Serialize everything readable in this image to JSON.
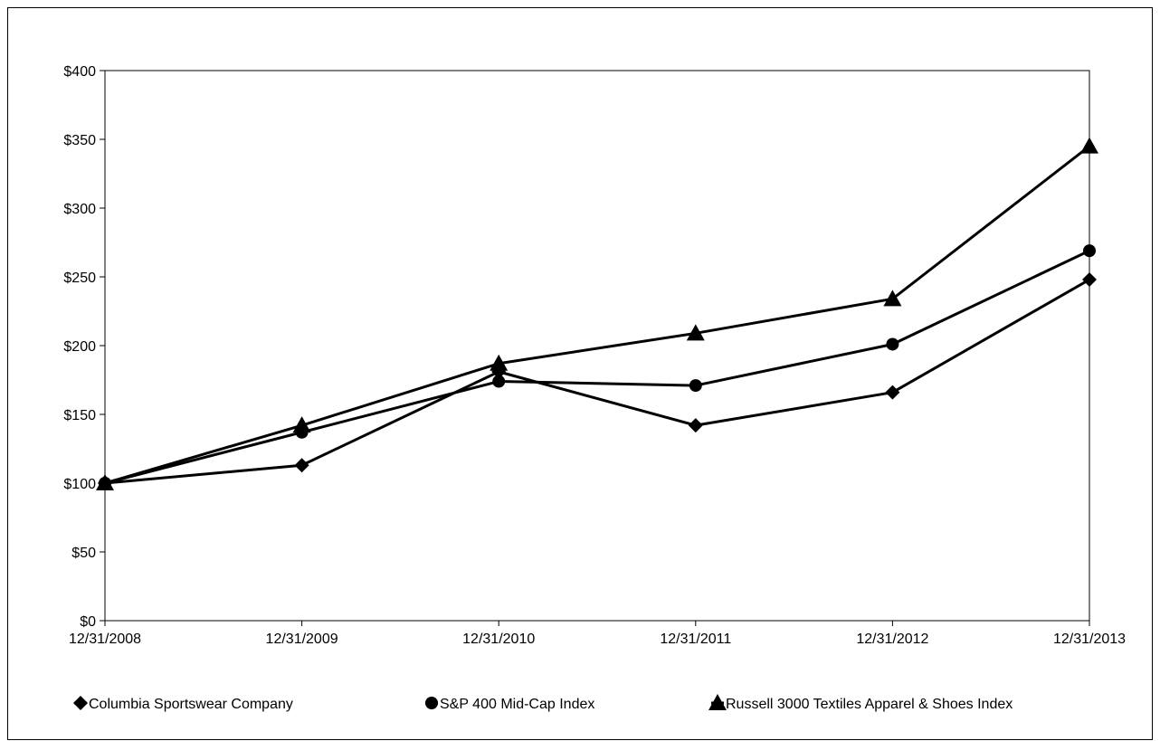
{
  "chart_data": {
    "type": "line",
    "categories": [
      "12/31/2008",
      "12/31/2009",
      "12/31/2010",
      "12/31/2011",
      "12/31/2012",
      "12/31/2013"
    ],
    "y_ticks": [
      "$0",
      "$50",
      "$100",
      "$150",
      "$200",
      "$250",
      "$300",
      "$350",
      "$400"
    ],
    "ylim": [
      0,
      400
    ],
    "grid": false,
    "legend_position": "bottom",
    "series": [
      {
        "name": "Columbia Sportswear Company",
        "marker": "diamond",
        "values": [
          100,
          113,
          181,
          142,
          166,
          248
        ]
      },
      {
        "name": "S&P 400 Mid-Cap Index",
        "marker": "circle",
        "values": [
          100,
          137,
          174,
          171,
          201,
          269
        ]
      },
      {
        "name": "Russell 3000 Textiles Apparel & Shoes Index",
        "marker": "triangle",
        "values": [
          100,
          142,
          187,
          209,
          234,
          345
        ]
      }
    ],
    "line_color": "#000000"
  }
}
